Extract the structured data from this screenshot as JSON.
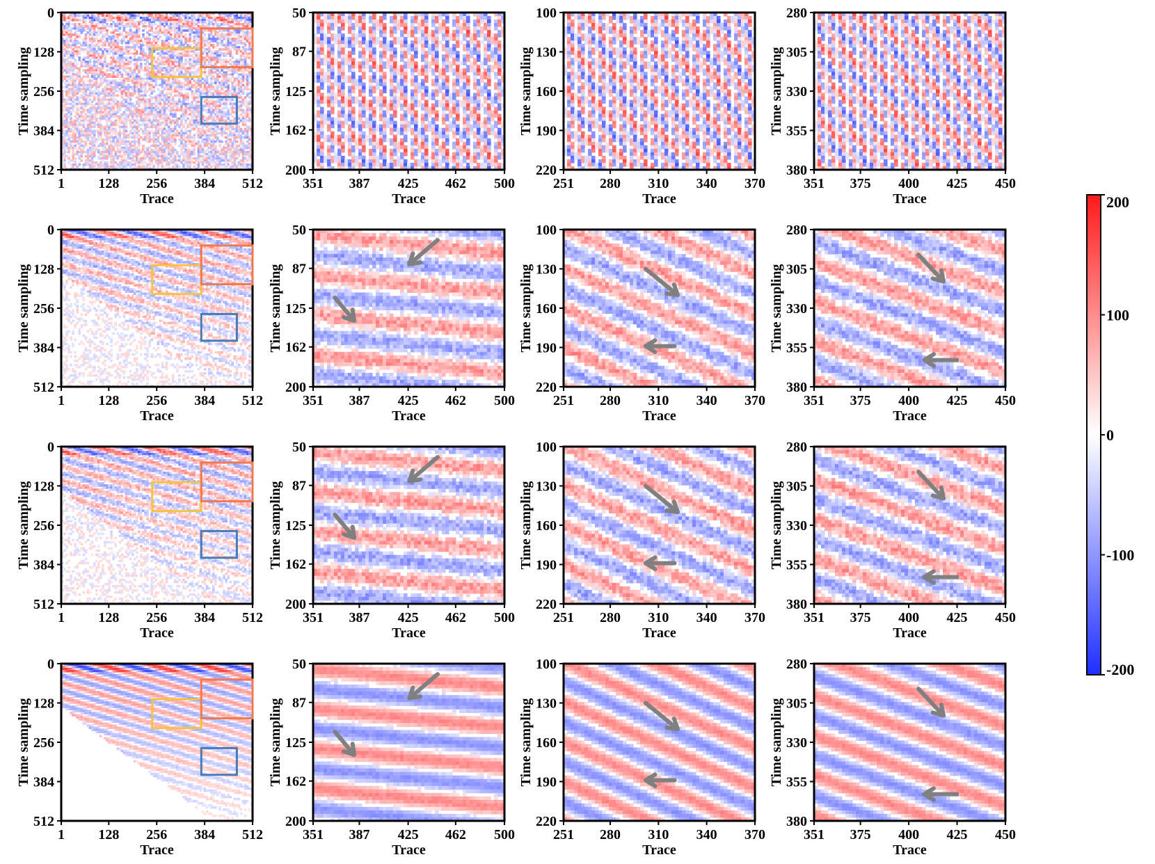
{
  "figure": {
    "rows": 4,
    "cols": 4,
    "xlabel": "Trace",
    "ylabel": "Time sampling"
  },
  "chart_data": {
    "type": "heatmap",
    "colormap": {
      "low": "#1f2fff",
      "mid": "#ffffff",
      "high": "#ff1a1a"
    },
    "colorbar": {
      "range": [
        -200,
        200
      ],
      "ticks": [
        "200",
        "100",
        "0",
        "-100",
        "-200"
      ]
    },
    "columns": [
      {
        "xlim": [
          1,
          512
        ],
        "ylim": [
          0,
          512
        ],
        "xticks": [
          "1",
          "128",
          "256",
          "384",
          "512"
        ],
        "yticks": [
          "0",
          "128",
          "256",
          "384",
          "512"
        ],
        "boxes": [
          {
            "color": "#f5c242",
            "x": [
              244,
              375
            ],
            "y": [
              116,
              210
            ]
          },
          {
            "color": "#f07a50",
            "x": [
              375,
              512
            ],
            "y": [
              52,
              178
            ]
          },
          {
            "color": "#4a7ab5",
            "x": [
              375,
              470
            ],
            "y": [
              275,
              362
            ]
          }
        ]
      },
      {
        "xlim": [
          351,
          500
        ],
        "ylim": [
          50,
          200
        ],
        "xticks": [
          "351",
          "387",
          "425",
          "462",
          "500"
        ],
        "yticks": [
          "50",
          "87",
          "125",
          "162",
          "200"
        ],
        "arrows": [
          {
            "from": [
              448,
              60
            ],
            "to": [
              426,
              83
            ]
          },
          {
            "from": [
              368,
              115
            ],
            "to": [
              383,
              137
            ]
          }
        ]
      },
      {
        "xlim": [
          251,
          370
        ],
        "ylim": [
          100,
          220
        ],
        "xticks": [
          "251",
          "280",
          "310",
          "340",
          "370"
        ],
        "yticks": [
          "100",
          "130",
          "160",
          "190",
          "220"
        ],
        "arrows": [
          {
            "from": [
              302,
              130
            ],
            "to": [
              322,
              150
            ]
          },
          {
            "from": [
              320,
              189
            ],
            "to": [
              302,
              189
            ]
          }
        ]
      },
      {
        "xlim": [
          351,
          450
        ],
        "ylim": [
          280,
          380
        ],
        "xticks": [
          "351",
          "375",
          "400",
          "425",
          "450"
        ],
        "yticks": [
          "280",
          "305",
          "330",
          "355",
          "380"
        ],
        "arrows": [
          {
            "from": [
              405,
              296
            ],
            "to": [
              418,
              313
            ]
          },
          {
            "from": [
              425,
              363
            ],
            "to": [
              408,
              363
            ]
          }
        ]
      }
    ],
    "panel_rows": [
      {
        "noise": "high",
        "arrows": false
      },
      {
        "noise": "medium",
        "arrows": true
      },
      {
        "noise": "medium",
        "arrows": true
      },
      {
        "noise": "low",
        "arrows": true
      }
    ]
  }
}
